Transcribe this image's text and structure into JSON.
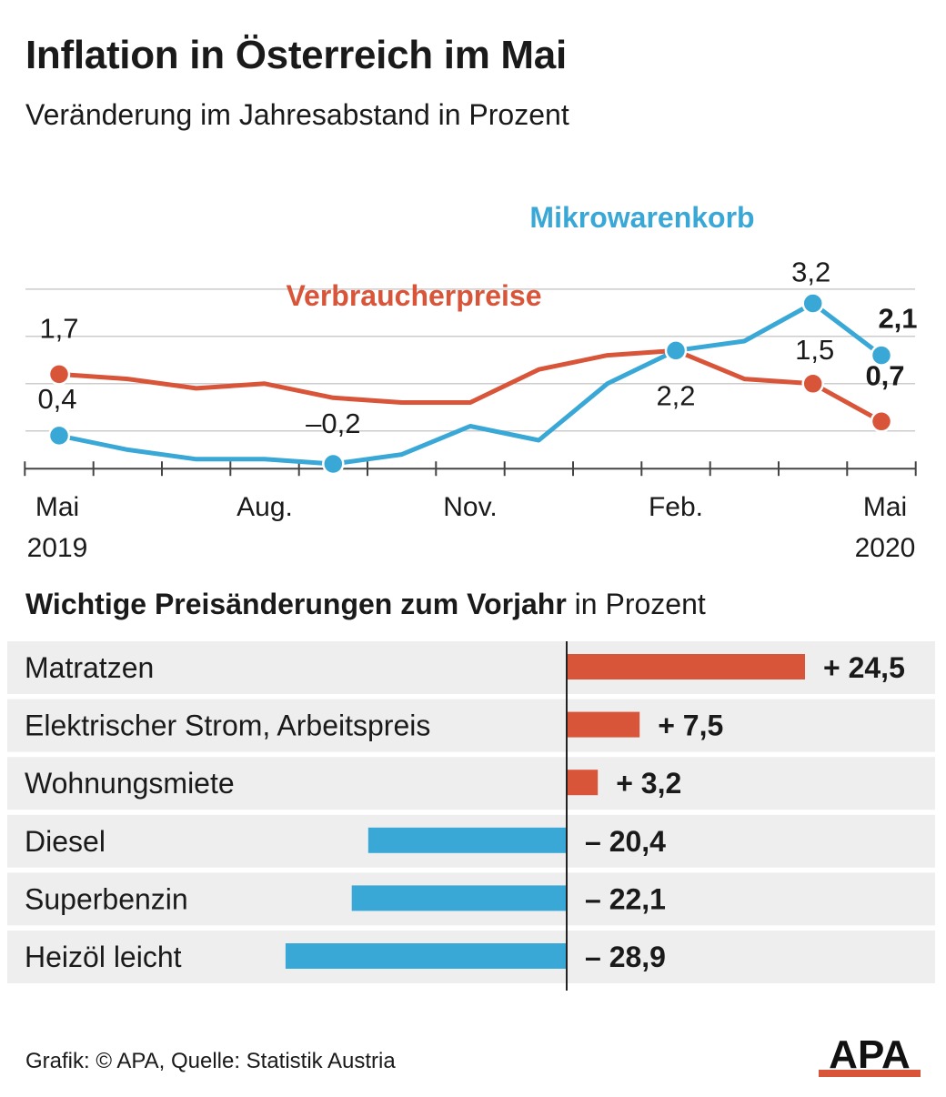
{
  "title": "Inflation in Österreich im Mai",
  "subtitle": "Veränderung im Jahresabstand in Prozent",
  "colors": {
    "vpi": "#d9553a",
    "micro": "#3aa8d6",
    "grid": "#cccccc",
    "row_bg": "#eeeeee",
    "text": "#1a1a1a"
  },
  "chart_data": [
    {
      "type": "line",
      "title": "Inflation in Österreich im Mai",
      "subtitle": "Veränderung im Jahresabstand in Prozent",
      "x": [
        "2019-05",
        "2019-06",
        "2019-07",
        "2019-08",
        "2019-09",
        "2019-10",
        "2019-11",
        "2019-12",
        "2020-01",
        "2020-02",
        "2020-03",
        "2020-04",
        "2020-05"
      ],
      "x_tick_labels": [
        {
          "at": "2019-05",
          "line1": "Mai",
          "line2": "2019"
        },
        {
          "at": "2019-08",
          "line1": "Aug.",
          "line2": ""
        },
        {
          "at": "2019-11",
          "line1": "Nov.",
          "line2": ""
        },
        {
          "at": "2020-02",
          "line1": "Feb.",
          "line2": ""
        },
        {
          "at": "2020-05",
          "line1": "Mai",
          "line2": "2020"
        }
      ],
      "ylim": [
        -0.3,
        3.9
      ],
      "grid": true,
      "series": [
        {
          "name": "Verbraucherpreise",
          "color": "#d9553a",
          "values": [
            1.7,
            1.6,
            1.4,
            1.5,
            1.2,
            1.1,
            1.1,
            1.8,
            2.1,
            2.2,
            1.6,
            1.5,
            0.7
          ],
          "labels": [
            {
              "index": 0,
              "text": "1,7"
            },
            {
              "index": 11,
              "text": "1,5"
            },
            {
              "index": 12,
              "text": "0,7"
            }
          ]
        },
        {
          "name": "Mikrowarenkorb",
          "color": "#3aa8d6",
          "values": [
            0.4,
            0.1,
            -0.1,
            -0.1,
            -0.2,
            0.0,
            0.6,
            0.3,
            1.5,
            2.2,
            2.4,
            3.2,
            2.1
          ],
          "labels": [
            {
              "index": 0,
              "text": "0,4"
            },
            {
              "index": 4,
              "text": "–0,2"
            },
            {
              "index": 9,
              "text": "2,2"
            },
            {
              "index": 11,
              "text": "3,2"
            },
            {
              "index": 12,
              "text": "2,1"
            }
          ]
        }
      ]
    },
    {
      "type": "bar",
      "title_bold": "Wichtige Preisänderungen zum Vorjahr",
      "title_rest": " in Prozent",
      "categories": [
        "Matratzen",
        "Elektrischer Strom, Arbeitspreis",
        "Wohnungsmiete",
        "Diesel",
        "Superbenzin",
        "Heizöl leicht"
      ],
      "values": [
        24.5,
        7.5,
        3.2,
        -20.4,
        -22.1,
        -28.9
      ],
      "value_labels": [
        "+ 24,5",
        "+ 7,5",
        "+ 3,2",
        "– 20,4",
        "– 22,1",
        "– 28,9"
      ]
    }
  ],
  "footer": {
    "credit": "Grafik: © APA, Quelle: Statistik Austria"
  },
  "logo": {
    "text": "APA"
  }
}
